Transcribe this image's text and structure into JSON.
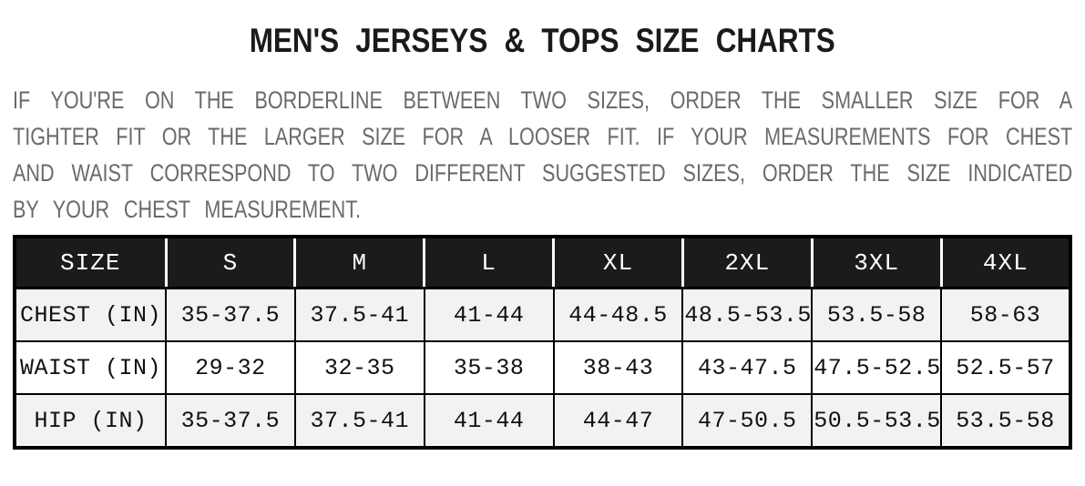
{
  "title": "MEN'S JERSEYS & TOPS SIZE CHARTS",
  "intro": {
    "lines": [
      "IF YOU'RE ON THE BORDERLINE BETWEEN TWO SIZES, ORDER THE SMALLER SIZE FOR A",
      "TIGHTER FIT OR THE LARGER SIZE FOR A LOOSER FIT. IF YOUR MEASUREMENTS FOR CHEST",
      "AND WAIST CORRESPOND TO TWO DIFFERENT SUGGESTED SIZES, ORDER THE SIZE INDICATED",
      "BY YOUR CHEST MEASUREMENT."
    ]
  },
  "size_chart": {
    "columns": [
      "SIZE",
      "S",
      "M",
      "L",
      "XL",
      "2XL",
      "3XL",
      "4XL"
    ],
    "rows": [
      {
        "label": "CHEST (IN)",
        "values": [
          "35-37.5",
          "37.5-41",
          "41-44",
          "44-48.5",
          "48.5-53.5",
          "53.5-58",
          "58-63"
        ]
      },
      {
        "label": "WAIST (IN)",
        "values": [
          "29-32",
          "32-35",
          "35-38",
          "38-43",
          "43-47.5",
          "47.5-52.5",
          "52.5-57"
        ]
      },
      {
        "label": "HIP (IN)",
        "values": [
          "35-37.5",
          "37.5-41",
          "41-44",
          "44-47",
          "47-50.5",
          "50.5-53.5",
          "53.5-58"
        ]
      }
    ]
  },
  "colors": {
    "header_bg": "#1b1b1b",
    "header_text": "#ffffff",
    "row_alt_bg": "#f2f2f2",
    "row_bg": "#ffffff",
    "border": "#000000",
    "title_text": "#1a1a1a",
    "body_text": "#6a6a6a"
  }
}
